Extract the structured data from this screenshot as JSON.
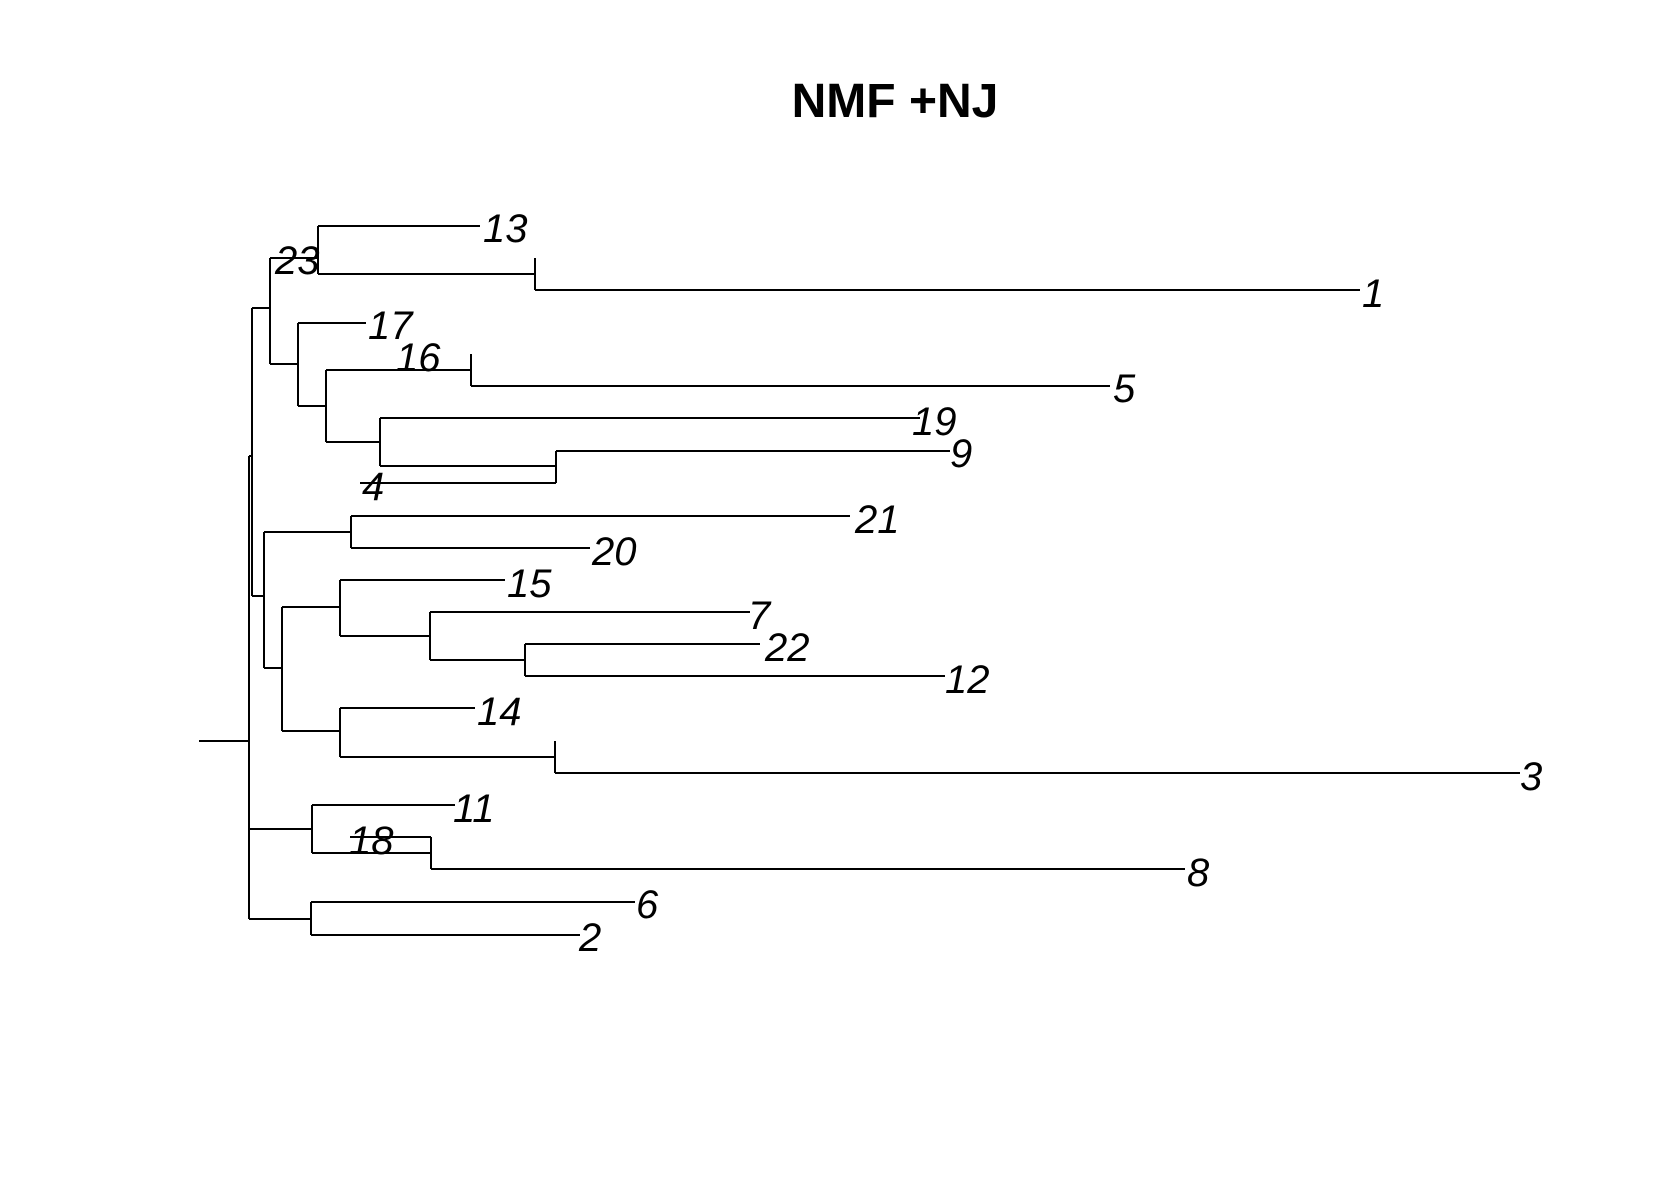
{
  "title": "NMF +NJ",
  "colors": {
    "background": "#ffffff",
    "line": "#000000",
    "text": "#000000"
  },
  "tree": {
    "type": "dendrogram",
    "orientation": "rightward",
    "tip_labels_italic": true,
    "tips": [
      "13",
      "1",
      "23",
      "17",
      "16",
      "5",
      "19",
      "9",
      "4",
      "21",
      "20",
      "15",
      "7",
      "22",
      "12",
      "14",
      "3",
      "11",
      "18",
      "8",
      "6",
      "2"
    ]
  }
}
